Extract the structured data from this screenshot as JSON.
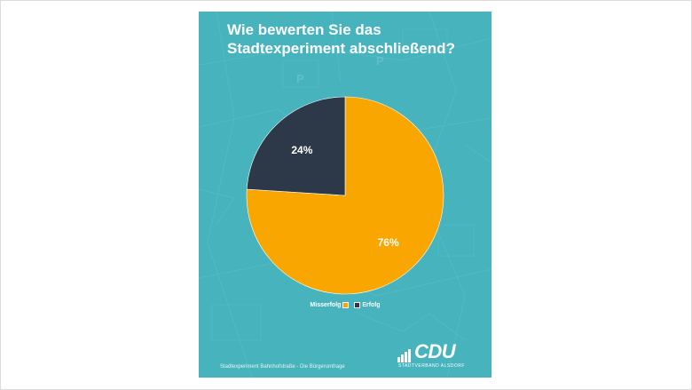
{
  "card": {
    "title_line1": "Wie bewerten Sie das",
    "title_line2": "Stadtexperiment abschließend?",
    "background": "#46b3bd",
    "footer": "Stadtexperiment Bahnhofstraße - Die Bürgerumfrage"
  },
  "logo": {
    "wordmark": "CDU",
    "subline": "STADTVERBAND ALSDORF"
  },
  "chart_data": {
    "type": "pie",
    "title": "Wie bewerten Sie das Stadtexperiment abschließend?",
    "slices": [
      {
        "label": "Misserfolg",
        "value": 76,
        "display": "76%",
        "color": "#f9a600"
      },
      {
        "label": "Erfolg",
        "value": 24,
        "display": "24%",
        "color": "#2d3948"
      }
    ],
    "legend_position": "bottom"
  }
}
